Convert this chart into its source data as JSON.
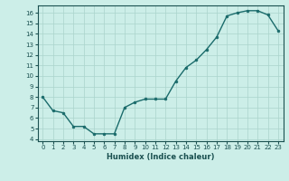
{
  "x": [
    0,
    1,
    2,
    3,
    4,
    5,
    6,
    7,
    8,
    9,
    10,
    11,
    12,
    13,
    14,
    15,
    16,
    17,
    18,
    19,
    20,
    21,
    22,
    23
  ],
  "y": [
    8.0,
    6.7,
    6.5,
    5.2,
    5.2,
    4.5,
    4.5,
    4.5,
    7.0,
    7.5,
    7.8,
    7.8,
    7.8,
    9.5,
    10.8,
    11.5,
    12.5,
    13.7,
    15.7,
    16.0,
    16.2,
    16.2,
    15.8,
    14.3
  ],
  "xlabel": "Humidex (Indice chaleur)",
  "xlim": [
    -0.5,
    23.5
  ],
  "ylim": [
    3.8,
    16.7
  ],
  "yticks": [
    4,
    5,
    6,
    7,
    8,
    9,
    10,
    11,
    12,
    13,
    14,
    15,
    16
  ],
  "xticks": [
    0,
    1,
    2,
    3,
    4,
    5,
    6,
    7,
    8,
    9,
    10,
    11,
    12,
    13,
    14,
    15,
    16,
    17,
    18,
    19,
    20,
    21,
    22,
    23
  ],
  "line_color": "#1a6b6b",
  "marker": "o",
  "marker_size": 2.0,
  "bg_color": "#cceee8",
  "grid_color": "#aad4cc",
  "font_color": "#1a5050",
  "font_size_tick": 5.0,
  "font_size_label": 6.0,
  "linewidth": 1.0
}
